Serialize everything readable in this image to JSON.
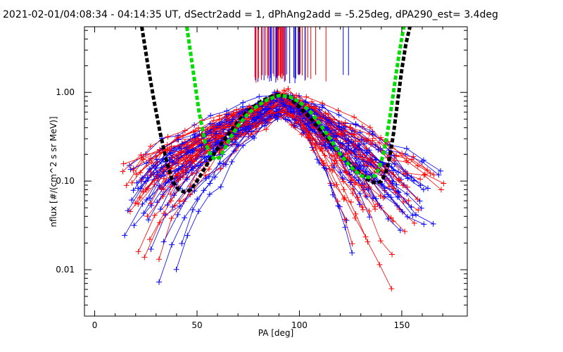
{
  "chart_data": {
    "type": "scatter",
    "title": "2021-02-01/04:08:34 - 04:14:35 UT, dSectr2add = 1, dPhAng2add = -5.25deg, dPA290_est=    3.4deg",
    "xlabel": "PA [deg]",
    "ylabel": "nflux [#/(cm^2 s sr MeV)]",
    "xlim": [
      -5,
      182
    ],
    "ylim": [
      0.003,
      5.5
    ],
    "yscale": "log",
    "x_ticks": [
      0,
      50,
      100,
      150
    ],
    "x_tick_labels": [
      "0",
      "50",
      "100",
      "150"
    ],
    "y_ticks": [
      0.01,
      0.1,
      1.0
    ],
    "y_tick_labels": [
      "0.01",
      "0.10",
      "1.00"
    ],
    "grid": false,
    "legend": "none",
    "colors": {
      "red": "#ff0000",
      "blue": "#0000ff",
      "black_fit": "#000000",
      "green_fit": "#00dd00",
      "axes": "#000000"
    },
    "series": [
      {
        "color": "black",
        "style": "thick-dashed",
        "x": [
          23,
          26,
          29,
          32,
          35,
          38,
          41,
          44,
          47,
          50,
          53,
          56,
          60,
          65,
          70,
          75,
          80,
          85,
          90,
          95,
          100,
          105,
          110,
          115,
          120,
          125,
          130,
          133,
          136,
          138,
          140,
          142,
          144,
          146,
          148,
          150,
          152,
          154
        ],
        "y": [
          5.5,
          2.0,
          0.8,
          0.35,
          0.17,
          0.1,
          0.08,
          0.075,
          0.08,
          0.1,
          0.13,
          0.17,
          0.23,
          0.33,
          0.47,
          0.62,
          0.76,
          0.88,
          0.95,
          0.88,
          0.68,
          0.52,
          0.38,
          0.28,
          0.2,
          0.15,
          0.12,
          0.105,
          0.097,
          0.095,
          0.1,
          0.12,
          0.18,
          0.35,
          0.8,
          1.8,
          3.5,
          5.5
        ]
      },
      {
        "color": "green",
        "style": "thick-dashed",
        "x": [
          45,
          48,
          51,
          54,
          57,
          59,
          61,
          63,
          66,
          70,
          75,
          80,
          85,
          90,
          95,
          100,
          105,
          110,
          115,
          120,
          125,
          130,
          134,
          137,
          139,
          141,
          143,
          145,
          147,
          149,
          151
        ],
        "y": [
          5.5,
          1.8,
          0.6,
          0.27,
          0.19,
          0.175,
          0.185,
          0.22,
          0.3,
          0.42,
          0.58,
          0.72,
          0.84,
          0.92,
          0.9,
          0.78,
          0.62,
          0.44,
          0.3,
          0.2,
          0.145,
          0.115,
          0.11,
          0.115,
          0.14,
          0.2,
          0.35,
          0.7,
          1.5,
          3.0,
          5.5
        ]
      }
    ],
    "notes": "Dense red and blue crosses joined by thin lines form an inverted-V distribution of pitch angles peaking near PA 90 deg at ~1.0; many vertical red/blue lines rise from ~1.2 to the top border between PA 78 and 125."
  }
}
